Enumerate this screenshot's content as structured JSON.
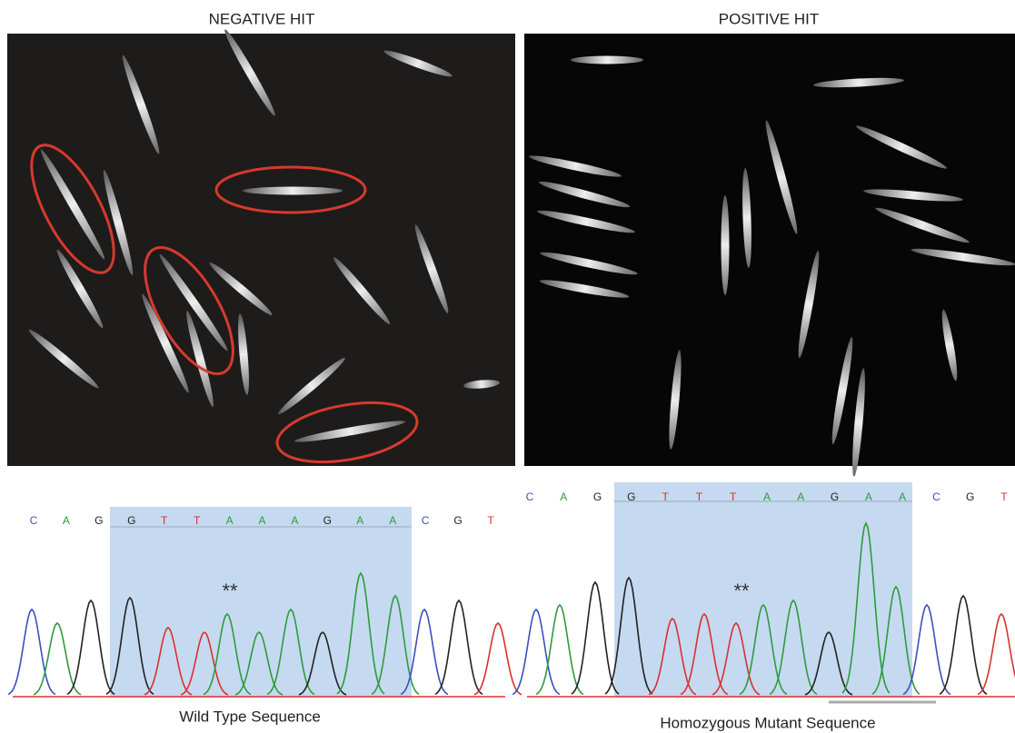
{
  "panels": [
    {
      "title": "NEGATIVE HIT",
      "bases": [
        {
          "letter": "C",
          "color": "#3a4fc0"
        },
        {
          "letter": "A",
          "color": "#2e9b3c"
        },
        {
          "letter": "G",
          "color": "#222222"
        },
        {
          "letter": "G",
          "color": "#222222"
        },
        {
          "letter": "T",
          "color": "#d93030"
        },
        {
          "letter": "T",
          "color": "#d93030"
        },
        {
          "letter": "A",
          "color": "#2e9b3c"
        },
        {
          "letter": "A",
          "color": "#2e9b3c"
        },
        {
          "letter": "A",
          "color": "#2e9b3c"
        },
        {
          "letter": "G",
          "color": "#222222"
        },
        {
          "letter": "A",
          "color": "#2e9b3c"
        },
        {
          "letter": "A",
          "color": "#2e9b3c"
        },
        {
          "letter": "C",
          "color": "#3a4fc0"
        },
        {
          "letter": "G",
          "color": "#222222"
        },
        {
          "letter": "T",
          "color": "#d93030"
        }
      ],
      "marker": "**",
      "caption": "Wild Type Sequence"
    },
    {
      "title": "POSITIVE HIT",
      "bases": [
        {
          "letter": "C",
          "color": "#3a4fc0"
        },
        {
          "letter": "A",
          "color": "#2e9b3c"
        },
        {
          "letter": "G",
          "color": "#222222"
        },
        {
          "letter": "G",
          "color": "#222222"
        },
        {
          "letter": "T",
          "color": "#d93030"
        },
        {
          "letter": "T",
          "color": "#d93030"
        },
        {
          "letter": "T",
          "color": "#d93030"
        },
        {
          "letter": "A",
          "color": "#2e9b3c"
        },
        {
          "letter": "A",
          "color": "#2e9b3c"
        },
        {
          "letter": "G",
          "color": "#222222"
        },
        {
          "letter": "A",
          "color": "#2e9b3c"
        },
        {
          "letter": "A",
          "color": "#2e9b3c"
        },
        {
          "letter": "C",
          "color": "#3a4fc0"
        },
        {
          "letter": "G",
          "color": "#222222"
        },
        {
          "letter": "T",
          "color": "#d93030"
        }
      ],
      "marker": "**",
      "caption": "Homozygous Mutant Sequence"
    }
  ]
}
